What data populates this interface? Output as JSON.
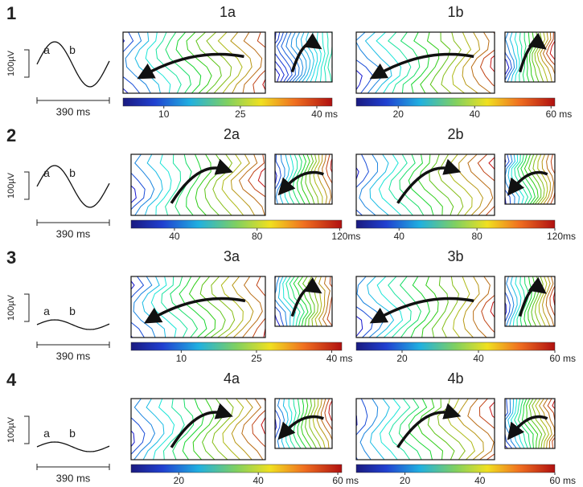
{
  "rows": [
    {
      "label": "1",
      "scale_label": "100µV",
      "time_label": "390 ms",
      "wave_labels": [
        "a",
        "b"
      ],
      "panels": [
        {
          "title": "1a",
          "colorbar": {
            "lim": [
              2,
              43
            ],
            "ticks": [
              10,
              25,
              40
            ],
            "unit": "ms"
          }
        },
        {
          "title": "1b",
          "colorbar": {
            "lim": [
              9,
              61
            ],
            "ticks": [
              20,
              40,
              60
            ],
            "unit": "ms"
          }
        }
      ]
    },
    {
      "label": "2",
      "scale_label": "100µV",
      "time_label": "390 ms",
      "wave_labels": [
        "a",
        "b"
      ],
      "panels": [
        {
          "title": "2a",
          "colorbar": {
            "lim": [
              19,
              121
            ],
            "ticks": [
              40,
              80,
              120
            ],
            "unit": "ms"
          }
        },
        {
          "title": "2b",
          "colorbar": {
            "lim": [
              18,
              120
            ],
            "ticks": [
              40,
              80,
              120
            ],
            "unit": "ms"
          }
        }
      ]
    },
    {
      "label": "3",
      "scale_label": "100µV",
      "time_label": "390 ms",
      "wave_labels": [
        "a",
        "b"
      ],
      "panels": [
        {
          "title": "3a",
          "colorbar": {
            "lim": [
              0,
              42
            ],
            "ticks": [
              10,
              25,
              40
            ],
            "unit": "ms"
          }
        },
        {
          "title": "3b",
          "colorbar": {
            "lim": [
              8,
              60
            ],
            "ticks": [
              20,
              40,
              60
            ],
            "unit": "ms"
          }
        }
      ]
    },
    {
      "label": "4",
      "scale_label": "100µV",
      "time_label": "390 ms",
      "wave_labels": [
        "a",
        "b"
      ],
      "panels": [
        {
          "title": "4a",
          "colorbar": {
            "lim": [
              8,
              61
            ],
            "ticks": [
              20,
              40,
              60
            ],
            "unit": "ms"
          }
        },
        {
          "title": "4b",
          "colorbar": {
            "lim": [
              7,
              60
            ],
            "ticks": [
              20,
              40,
              60
            ],
            "unit": "ms"
          }
        }
      ]
    }
  ]
}
